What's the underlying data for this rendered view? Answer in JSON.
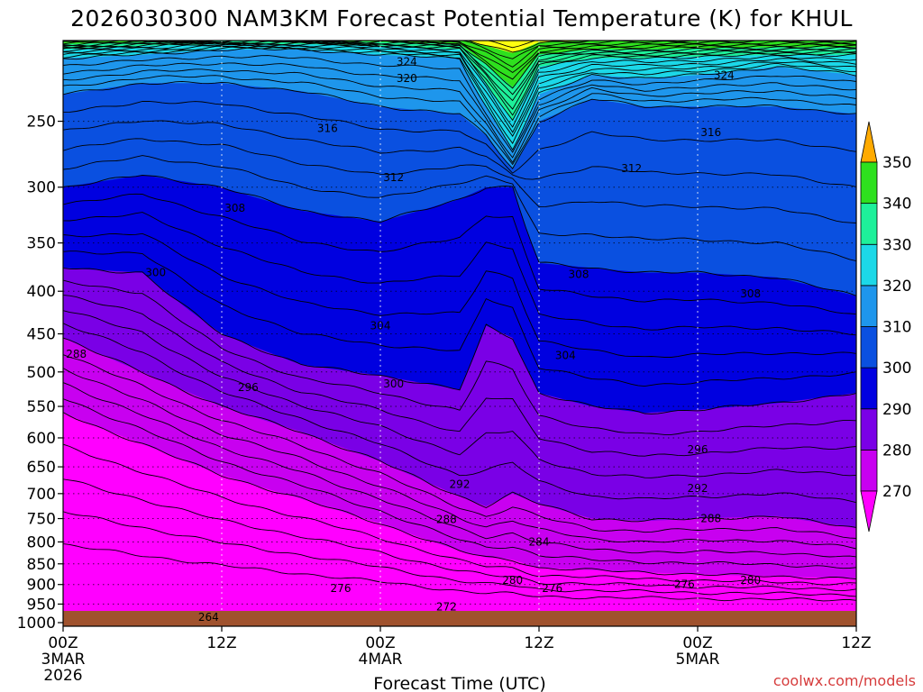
{
  "title": "2026030300 NAM3KM Forecast Potential Temperature (K) for KHUL",
  "credit": "coolwx.com/models",
  "colors": {
    "credit": "#d63c3c",
    "ground": "#a0522d"
  },
  "chart_data": {
    "type": "contour",
    "title": "2026030300 NAM3KM Forecast Potential Temperature (K) for KHUL",
    "xlabel": "Forecast Time (UTC)",
    "ylabel": "",
    "xlim": [
      0,
      60
    ],
    "x_ticks": [
      {
        "hour": 0,
        "label": "00Z",
        "date1": "3MAR",
        "date2": "2026"
      },
      {
        "hour": 12,
        "label": "12Z",
        "date1": "",
        "date2": ""
      },
      {
        "hour": 24,
        "label": "00Z",
        "date1": "4MAR",
        "date2": ""
      },
      {
        "hour": 36,
        "label": "12Z",
        "date1": "",
        "date2": ""
      },
      {
        "hour": 48,
        "label": "00Z",
        "date1": "5MAR",
        "date2": ""
      },
      {
        "hour": 60,
        "label": "12Z",
        "date1": "",
        "date2": ""
      }
    ],
    "y_ticks": [
      250,
      300,
      350,
      400,
      450,
      500,
      550,
      600,
      650,
      700,
      750,
      800,
      850,
      900,
      950,
      1000
    ],
    "ylim_hpa": [
      1010,
      200
    ],
    "colorbar": {
      "levels": [
        270,
        280,
        290,
        300,
        310,
        320,
        330,
        340,
        350
      ],
      "colors": [
        "#ff00ff",
        "#c800f0",
        "#7a00e6",
        "#0000e0",
        "#0a50e0",
        "#1e96ec",
        "#1cd8e8",
        "#1ef09a",
        "#2ee01e",
        "#ffff10",
        "#ffaa00"
      ]
    },
    "fill_bands": [
      {
        "range": [
          260,
          270
        ],
        "color": "#ff00ff"
      },
      {
        "range": [
          270,
          280
        ],
        "color": "#c800f0"
      },
      {
        "range": [
          280,
          290
        ],
        "color": "#7a00e6"
      },
      {
        "range": [
          290,
          300
        ],
        "color": "#0000e0"
      },
      {
        "range": [
          300,
          310
        ],
        "color": "#0a50e0"
      },
      {
        "range": [
          310,
          320
        ],
        "color": "#1e96ec"
      },
      {
        "range": [
          320,
          330
        ],
        "color": "#1cd8e8"
      },
      {
        "range": [
          330,
          340
        ],
        "color": "#1ef09a"
      },
      {
        "range": [
          340,
          350
        ],
        "color": "#2ee01e"
      },
      {
        "range": [
          350,
          360
        ],
        "color": "#ffff10"
      }
    ],
    "boundary_profiles_hour": [
      0,
      6,
      12,
      18,
      24,
      30,
      32,
      34,
      36,
      40,
      44,
      48,
      54,
      60
    ],
    "boundary_profiles": [
      {
        "theta": 270,
        "p": [
          560,
          610,
          665,
          710,
          760,
          820,
          835,
          840,
          860,
          865,
          870,
          875,
          880,
          885
        ]
      },
      {
        "theta": 280,
        "p": [
          455,
          500,
          550,
          590,
          640,
          705,
          725,
          700,
          720,
          750,
          755,
          750,
          745,
          770
        ]
      },
      {
        "theta": 290,
        "p": [
          375,
          380,
          450,
          490,
          505,
          525,
          440,
          455,
          530,
          550,
          560,
          555,
          545,
          530
        ]
      },
      {
        "theta": 300,
        "p": [
          300,
          290,
          300,
          320,
          330,
          310,
          300,
          300,
          370,
          375,
          380,
          380,
          385,
          405
        ]
      },
      {
        "theta": 310,
        "p": [
          232,
          225,
          225,
          230,
          240,
          245,
          260,
          285,
          250,
          235,
          240,
          240,
          240,
          245
        ]
      },
      {
        "theta": 320,
        "p": [
          210,
          208,
          205,
          205,
          208,
          210,
          240,
          270,
          232,
          220,
          222,
          220,
          215,
          220
        ]
      },
      {
        "theta": 330,
        "p": [
          205,
          203,
          202,
          202,
          203,
          205,
          225,
          250,
          215,
          210,
          210,
          209,
          208,
          208
        ]
      }
    ],
    "contour_labels": [
      {
        "text": "324",
        "hour": 26,
        "p": 212
      },
      {
        "text": "320",
        "hour": 26,
        "p": 222
      },
      {
        "text": "324",
        "hour": 50,
        "p": 220
      },
      {
        "text": "316",
        "hour": 20,
        "p": 255
      },
      {
        "text": "316",
        "hour": 49,
        "p": 258
      },
      {
        "text": "312",
        "hour": 25,
        "p": 292
      },
      {
        "text": "312",
        "hour": 43,
        "p": 285
      },
      {
        "text": "308",
        "hour": 13,
        "p": 318
      },
      {
        "text": "300",
        "hour": 7,
        "p": 380
      },
      {
        "text": "308",
        "hour": 39,
        "p": 382
      },
      {
        "text": "308",
        "hour": 52,
        "p": 403
      },
      {
        "text": "304",
        "hour": 24,
        "p": 440
      },
      {
        "text": "304",
        "hour": 38,
        "p": 478
      },
      {
        "text": "288",
        "hour": 1,
        "p": 476
      },
      {
        "text": "296",
        "hour": 14,
        "p": 522
      },
      {
        "text": "300",
        "hour": 25,
        "p": 517
      },
      {
        "text": "296",
        "hour": 48,
        "p": 620
      },
      {
        "text": "292",
        "hour": 30,
        "p": 682
      },
      {
        "text": "292",
        "hour": 48,
        "p": 690
      },
      {
        "text": "288",
        "hour": 29,
        "p": 752
      },
      {
        "text": "288",
        "hour": 49,
        "p": 750
      },
      {
        "text": "284",
        "hour": 36,
        "p": 800
      },
      {
        "text": "280",
        "hour": 34,
        "p": 890
      },
      {
        "text": "280",
        "hour": 52,
        "p": 890
      },
      {
        "text": "276",
        "hour": 21,
        "p": 910
      },
      {
        "text": "276",
        "hour": 37,
        "p": 910
      },
      {
        "text": "276",
        "hour": 47,
        "p": 900
      },
      {
        "text": "272",
        "hour": 29,
        "p": 957
      },
      {
        "text": "264",
        "hour": 11,
        "p": 985
      }
    ]
  }
}
